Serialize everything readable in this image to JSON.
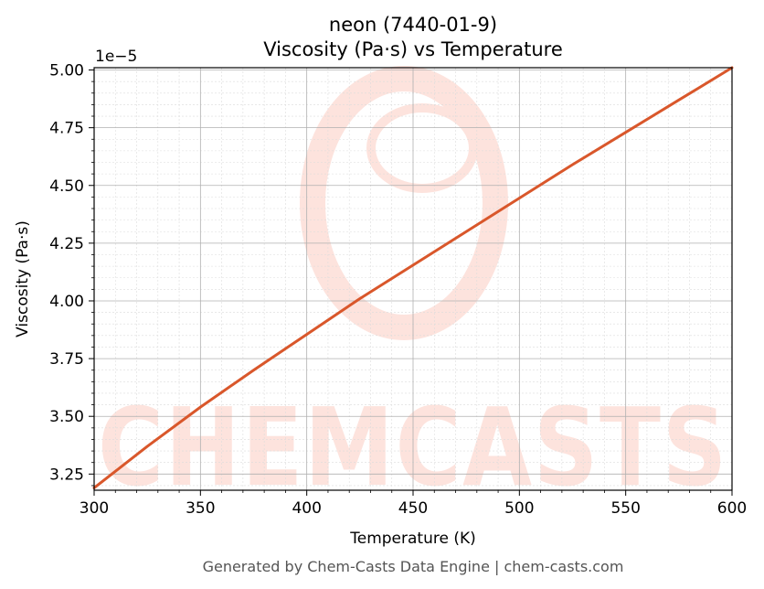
{
  "colors": {
    "line": "#d9572b",
    "watermark": "#fde3dd",
    "grid_major": "#b0b0b0",
    "grid_minor": "#dcdcdc"
  },
  "watermark": {
    "text": "CHEMCASTS",
    "logo": "chemcasts-logo-icon"
  },
  "footer": {
    "text": "Generated by Chem-Casts Data Engine | chem-casts.com"
  },
  "chart_data": {
    "type": "line",
    "title": [
      "neon (7440-01-9)",
      "Viscosity (Pa·s) vs Temperature"
    ],
    "xlabel": "Temperature (K)",
    "ylabel": "Viscosity (Pa·s)",
    "y_multiplier_label": "1e−5",
    "xlim": [
      300,
      600
    ],
    "ylim": [
      3.18,
      5.01
    ],
    "x_ticks": [
      300,
      350,
      400,
      450,
      500,
      550,
      600
    ],
    "x_tick_labels": [
      "300",
      "350",
      "400",
      "450",
      "500",
      "550",
      "600"
    ],
    "y_ticks": [
      3.25,
      3.5,
      3.75,
      4.0,
      4.25,
      4.5,
      4.75,
      5.0
    ],
    "y_tick_labels": [
      "3.25",
      "3.50",
      "3.75",
      "4.00",
      "4.25",
      "4.50",
      "4.75",
      "5.00"
    ],
    "grid": true,
    "series": [
      {
        "x": [
          300,
          325,
          350,
          375,
          400,
          425,
          450,
          475,
          500,
          525,
          550,
          575,
          600
        ],
        "values": [
          3.19,
          3.37,
          3.54,
          3.7,
          3.855,
          4.01,
          4.155,
          4.3,
          4.445,
          4.59,
          4.73,
          4.87,
          5.01
        ]
      }
    ]
  }
}
